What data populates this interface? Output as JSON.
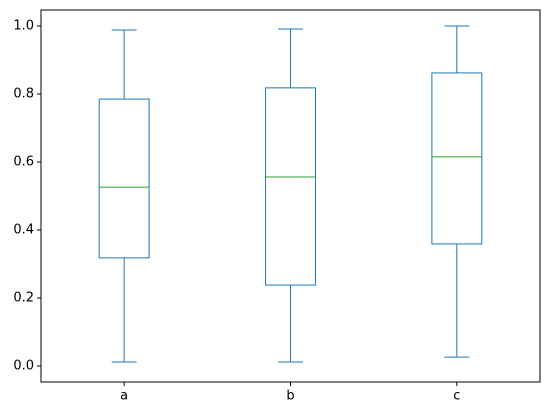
{
  "chart_data": {
    "type": "box",
    "categories": [
      "a",
      "b",
      "c"
    ],
    "whislo": [
      0.012,
      0.012,
      0.026
    ],
    "q1": [
      0.318,
      0.238,
      0.359
    ],
    "med": [
      0.526,
      0.556,
      0.615
    ],
    "q3": [
      0.785,
      0.818,
      0.862
    ],
    "whishi": [
      0.988,
      0.991,
      1.0
    ],
    "color": "#1f77b4",
    "median_color": "#2ca02c",
    "ylim": [
      -0.047,
      1.047
    ],
    "yticks": [
      {
        "value": 0,
        "label": "0.0"
      },
      {
        "value": 0.2,
        "label": "0.2"
      },
      {
        "value": 0.4,
        "label": "0.4"
      },
      {
        "value": 0.6,
        "label": "0.6"
      },
      {
        "value": 0.8,
        "label": "0.8"
      },
      {
        "value": 1,
        "label": "1.0"
      }
    ],
    "grid": false
  }
}
